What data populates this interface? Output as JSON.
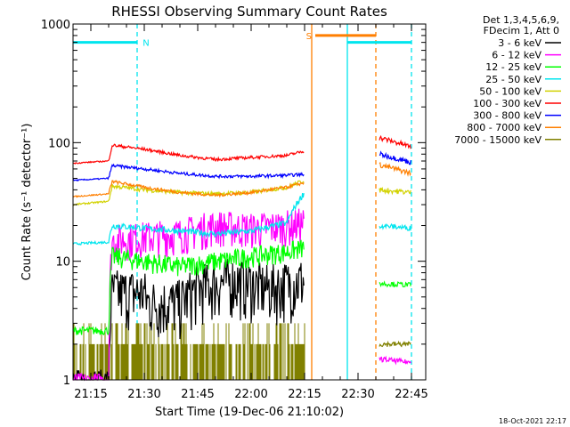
{
  "chart_data": {
    "type": "line",
    "title": "RHESSI Observing Summary Count Rates",
    "xlabel": "Start Time (19-Dec-06 21:10:02)",
    "ylabel": "Count Rate (s⁻¹ detector⁻¹)",
    "ylim": [
      1,
      1000
    ],
    "yscale": "log",
    "xlim": [
      "21:10",
      "22:49"
    ],
    "x_ticks": [
      "21:15",
      "21:30",
      "21:45",
      "22:00",
      "22:15",
      "22:30",
      "22:45"
    ],
    "y_ticks": [
      "1",
      "10",
      "100",
      "1000"
    ],
    "legend_header": [
      "Det 1,3,4,5,6,9,",
      "FDecim 1, Att 0"
    ],
    "legend_position": "right",
    "timestamp": "18-Oct-2021 22:17",
    "flags": [
      {
        "label": "N",
        "start": "21:10",
        "end": "21:28",
        "level": 700,
        "color": "#00e5ee"
      },
      {
        "label": "S",
        "start": "22:18",
        "end": "22:35",
        "level": 800,
        "color": "#ff7f00"
      },
      {
        "label": "",
        "start": "22:27",
        "end": "22:45",
        "level": 700,
        "color": "#00e5ee"
      }
    ],
    "vertical_markers": [
      {
        "time": "21:28",
        "color": "#00e5ee",
        "style": "dashed"
      },
      {
        "time": "22:17",
        "color": "#ff7f00",
        "style": "solid"
      },
      {
        "time": "22:27",
        "color": "#00e5ee",
        "style": "solid"
      },
      {
        "time": "22:35",
        "color": "#ff7f00",
        "style": "dashed"
      },
      {
        "time": "22:45",
        "color": "#00e5ee",
        "style": "dashed"
      }
    ],
    "series": [
      {
        "name": "3 - 6 keV",
        "color": "#000000",
        "noise": 0.55,
        "x": [
          "21:10",
          "21:20",
          "21:21",
          "21:30",
          "21:31",
          "21:40",
          "21:45",
          "21:55",
          "22:05",
          "22:15"
        ],
        "y": [
          1.0,
          1.0,
          5.5,
          5.5,
          4.5,
          4.5,
          6,
          7,
          6,
          7
        ]
      },
      {
        "name": "6 - 12 keV",
        "color": "#ff00ff",
        "noise": 0.35,
        "x": [
          "21:10",
          "21:20",
          "21:21",
          "21:30",
          "21:40",
          "21:50",
          "22:00",
          "22:10",
          "22:15"
        ],
        "y": [
          1.0,
          1.0,
          15,
          16,
          17,
          20,
          19,
          20,
          21
        ]
      },
      {
        "name": "12 - 25 keV",
        "color": "#00ff00",
        "noise": 0.2,
        "x": [
          "21:10",
          "21:20",
          "21:21",
          "21:30",
          "21:40",
          "21:50",
          "22:00",
          "22:10",
          "22:15"
        ],
        "y": [
          2.6,
          2.6,
          11,
          10,
          9,
          10,
          11,
          12,
          13
        ]
      },
      {
        "name": "25 - 50 keV",
        "color": "#00e5ee",
        "noise": 0.06,
        "x": [
          "21:10",
          "21:20",
          "21:21",
          "21:30",
          "21:40",
          "21:50",
          "22:00",
          "22:10",
          "22:15"
        ],
        "y": [
          14,
          14.5,
          20,
          19,
          18,
          17,
          18,
          21,
          38
        ]
      },
      {
        "name": "50 - 100 keV",
        "color": "#d2d200",
        "noise": 0.04,
        "x": [
          "21:10",
          "21:20",
          "21:21",
          "21:30",
          "21:40",
          "21:50",
          "22:00",
          "22:10",
          "22:15"
        ],
        "y": [
          30,
          32,
          43,
          40,
          38,
          37,
          38,
          42,
          48
        ]
      },
      {
        "name": "100 - 300 keV",
        "color": "#ff0000",
        "noise": 0.03,
        "x": [
          "21:10",
          "21:20",
          "21:21",
          "21:30",
          "21:40",
          "21:50",
          "22:00",
          "22:10",
          "22:15"
        ],
        "y": [
          67,
          70,
          95,
          88,
          78,
          72,
          75,
          78,
          85
        ]
      },
      {
        "name": "300 - 800 keV",
        "color": "#0000ff",
        "noise": 0.03,
        "x": [
          "21:10",
          "21:20",
          "21:21",
          "21:30",
          "21:40",
          "21:50",
          "22:00",
          "22:10",
          "22:15"
        ],
        "y": [
          48,
          50,
          64,
          60,
          55,
          52,
          52,
          53,
          54
        ]
      },
      {
        "name": "800 - 7000 keV",
        "color": "#ff7f00",
        "noise": 0.03,
        "x": [
          "21:10",
          "21:20",
          "21:21",
          "21:30",
          "21:40",
          "21:50",
          "22:00",
          "22:10",
          "22:15"
        ],
        "y": [
          35,
          37,
          47,
          42,
          38,
          36,
          38,
          42,
          46
        ]
      },
      {
        "name": "7000 - 15000 keV",
        "color": "#808000",
        "noise": 0.0,
        "x": [
          "21:10",
          "22:15"
        ],
        "y": [
          2.0,
          2.0
        ]
      }
    ],
    "post_gap_series": [
      {
        "name": "100 - 300 keV",
        "color": "#ff0000",
        "x": [
          "22:36",
          "22:45"
        ],
        "y": [
          110,
          92
        ]
      },
      {
        "name": "300 - 800 keV",
        "color": "#0000ff",
        "x": [
          "22:36",
          "22:45"
        ],
        "y": [
          80,
          68
        ]
      },
      {
        "name": "800 - 7000 keV",
        "color": "#ff7f00",
        "x": [
          "22:36",
          "22:45"
        ],
        "y": [
          65,
          55
        ]
      },
      {
        "name": "50 - 100 keV",
        "color": "#d2d200",
        "x": [
          "22:36",
          "22:45"
        ],
        "y": [
          40,
          38
        ]
      },
      {
        "name": "25 - 50 keV",
        "color": "#00e5ee",
        "x": [
          "22:36",
          "22:45"
        ],
        "y": [
          20,
          19
        ]
      },
      {
        "name": "12 - 25 keV",
        "color": "#00ff00",
        "x": [
          "22:36",
          "22:45"
        ],
        "y": [
          6.5,
          6.3
        ]
      },
      {
        "name": "6 - 12 keV",
        "color": "#ff00ff",
        "x": [
          "22:36",
          "22:45"
        ],
        "y": [
          1.5,
          1.4
        ]
      },
      {
        "name": "7000 - 15000 keV",
        "color": "#808000",
        "x": [
          "22:36",
          "22:45"
        ],
        "y": [
          2.0,
          2.0
        ]
      }
    ]
  }
}
